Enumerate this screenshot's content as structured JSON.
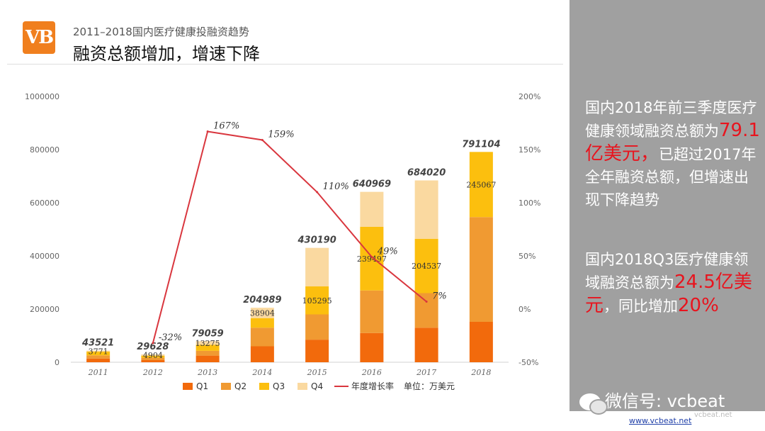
{
  "header": {
    "logo_text": "VB",
    "subtitle": "2011–2018国内医疗健康投融资趋势",
    "title": "融资总额增加，增速下降"
  },
  "chart_data": {
    "type": "bar",
    "stacked": true,
    "categories": [
      "2011",
      "2012",
      "2013",
      "2014",
      "2015",
      "2016",
      "2017",
      "2018"
    ],
    "y_ticks": [
      "0",
      "200000",
      "400000",
      "600000",
      "800000",
      "1000000"
    ],
    "ylim": [
      0,
      1000000
    ],
    "y2_ticks": [
      "-50%",
      "0%",
      "50%",
      "100%",
      "150%",
      "200%"
    ],
    "y2lim": [
      -50,
      200
    ],
    "series": [
      {
        "name": "Q1",
        "color": "#f26a0c",
        "values": [
          14000,
          8000,
          25000,
          60000,
          85000,
          110000,
          130000,
          152000
        ]
      },
      {
        "name": "Q2",
        "color": "#f09a32",
        "values": [
          12000,
          9000,
          18000,
          70000,
          95000,
          160000,
          130000,
          394037
        ]
      },
      {
        "name": "Q3",
        "color": "#fcbf0e",
        "values": [
          13750,
          7724,
          22784,
          36085,
          105295,
          239497,
          204537,
          245067
        ]
      },
      {
        "name": "Q4",
        "color": "#fad9a0",
        "values": [
          3771,
          4904,
          13275,
          38904,
          144895,
          131472,
          219483,
          0
        ]
      }
    ],
    "totals": [
      "43521",
      "29628",
      "79059",
      "204989",
      "430190",
      "640969",
      "684020",
      "791104"
    ],
    "q4_labels": [
      "3771",
      "4904",
      "13275",
      "38904",
      "",
      "",
      "",
      ""
    ],
    "q3_labels": [
      "",
      "",
      "",
      "",
      "105295",
      "239497",
      "204537",
      "245067"
    ],
    "growth_series": {
      "name": "年度增长率",
      "color": "#d9363e",
      "values": [
        null,
        -32,
        167,
        159,
        110,
        49,
        7,
        null
      ],
      "labels": [
        "",
        "-32%",
        "167%",
        "159%",
        "110%",
        "49%",
        "7%",
        ""
      ]
    },
    "legend_note": "单位：万美元"
  },
  "panel": {
    "p1_a": "国内2018年前三季度医疗健康领域融资总额为",
    "p1_hl": "79.1亿美元，",
    "p1_b": "已超过2017年全年融资总额，但增速出现下降趋势",
    "p2_a": "国内2018Q3医疗健康领域融资总额为",
    "p2_hl1": "24.5亿美元",
    "p2_b": "，同比增加",
    "p2_hl2": "20%"
  },
  "watermark": {
    "text": "微信号: vcbeat",
    "small": "vcbeat.net"
  },
  "footer": {
    "url": "www.vcbeat.net"
  }
}
